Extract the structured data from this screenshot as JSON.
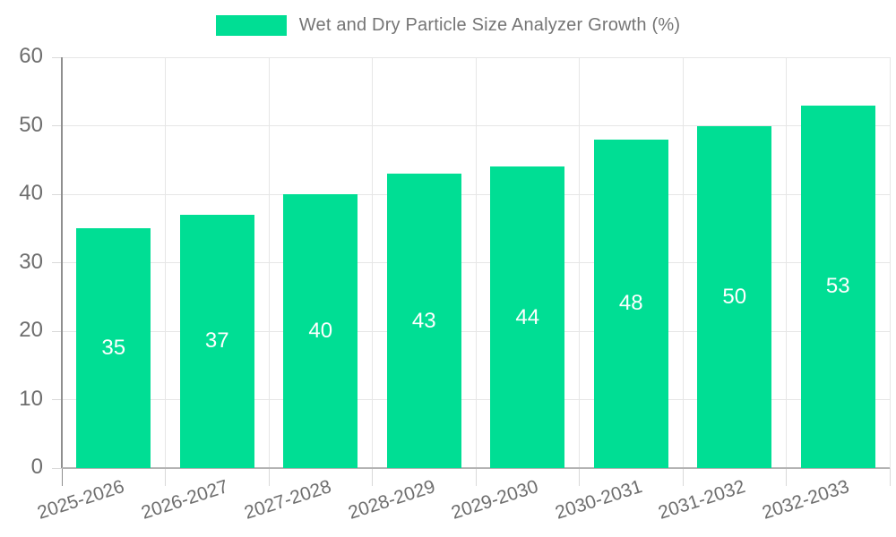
{
  "chart_data": {
    "type": "bar",
    "title": "Wet and Dry Particle Size Analyzer Growth (%)",
    "categories": [
      "2025-2026",
      "2026-2027",
      "2027-2028",
      "2028-2029",
      "2029-2030",
      "2030-2031",
      "2031-2032",
      "2032-2033"
    ],
    "series": [
      {
        "name": "Wet and Dry Particle Size Analyzer Growth (%)",
        "values": [
          35,
          37,
          40,
          43,
          44,
          48,
          50,
          53
        ]
      }
    ],
    "xlabel": "",
    "ylabel": "",
    "ylim": [
      0,
      60
    ],
    "yticks": [
      0,
      10,
      20,
      30,
      40,
      50,
      60
    ],
    "grid": true,
    "legend_position": "top-center",
    "bar_labels_inside": true,
    "colors": {
      "bar": "#00DE94",
      "bar_value_text": "#FFFFFF",
      "legend_text": "#757575",
      "axis_tick_text": "#6E6E6E",
      "gridline": "#E6E6E6",
      "tick_mark": "#D9D9D9",
      "y_axis_line": "#8F8F8F",
      "x_axis_line": "#B3B3B3",
      "background": "#FFFFFF"
    }
  }
}
